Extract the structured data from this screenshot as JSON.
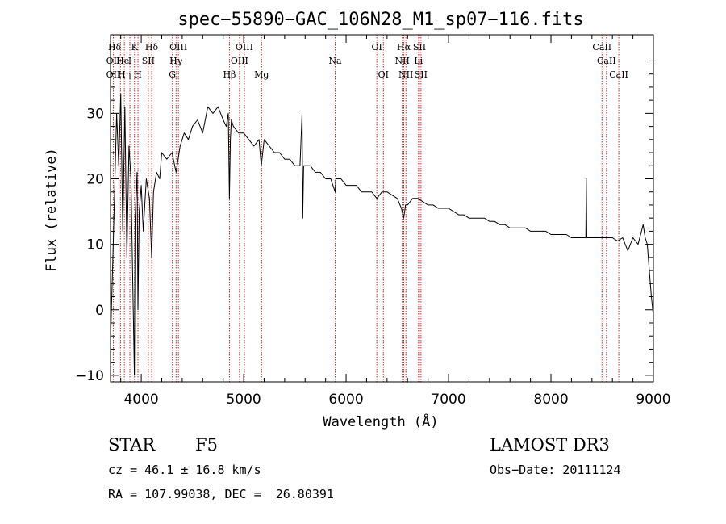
{
  "chart_data": {
    "type": "line",
    "title": "spec−55890−GAC_106N28_M1_sp07−116.fits",
    "xlabel": "Wavelength (Å)",
    "ylabel": "Flux (relative)",
    "xlim": [
      3700,
      9000
    ],
    "ylim": [
      -11,
      42
    ],
    "x_ticks": [
      4000,
      5000,
      6000,
      7000,
      8000,
      9000
    ],
    "y_ticks": [
      -10,
      0,
      10,
      20,
      30
    ],
    "grid": false,
    "series": [
      {
        "name": "flux",
        "x": [
          3700,
          3720,
          3740,
          3760,
          3780,
          3800,
          3820,
          3840,
          3860,
          3880,
          3900,
          3920,
          3933,
          3940,
          3960,
          3968,
          3980,
          4000,
          4020,
          4050,
          4080,
          4102,
          4120,
          4150,
          4180,
          4200,
          4250,
          4300,
          4340,
          4380,
          4420,
          4460,
          4500,
          4550,
          4600,
          4650,
          4700,
          4750,
          4800,
          4830,
          4850,
          4861,
          4870,
          4880,
          4900,
          4950,
          5000,
          5050,
          5100,
          5150,
          5172,
          5200,
          5250,
          5300,
          5350,
          5400,
          5450,
          5500,
          5550,
          5570,
          5577,
          5585,
          5600,
          5650,
          5700,
          5750,
          5800,
          5850,
          5893,
          5900,
          5950,
          6000,
          6050,
          6100,
          6150,
          6200,
          6250,
          6300,
          6350,
          6400,
          6450,
          6500,
          6540,
          6563,
          6580,
          6600,
          6650,
          6700,
          6750,
          6800,
          6850,
          6900,
          6950,
          7000,
          7050,
          7100,
          7150,
          7200,
          7250,
          7300,
          7350,
          7400,
          7450,
          7500,
          7550,
          7600,
          7650,
          7700,
          7750,
          7800,
          7850,
          7900,
          7950,
          8000,
          8050,
          8100,
          8150,
          8200,
          8250,
          8300,
          8340,
          8345,
          8350,
          8400,
          8450,
          8500,
          8550,
          8600,
          8650,
          8700,
          8750,
          8800,
          8850,
          8900,
          8920,
          8940,
          8960,
          8980,
          9000
        ],
        "y": [
          -5,
          6,
          18,
          30,
          22,
          33,
          12,
          31,
          8,
          25,
          20,
          2,
          -10,
          14,
          21,
          0,
          15,
          19,
          12,
          20,
          17,
          8,
          18,
          21,
          20,
          24,
          23,
          24,
          21,
          25,
          27,
          26,
          28,
          29,
          27,
          31,
          30,
          31,
          29,
          28,
          30,
          17,
          26,
          29,
          28,
          27,
          27,
          26,
          25,
          26,
          22,
          26,
          25,
          24,
          24,
          23,
          23,
          22,
          22,
          30,
          14,
          22,
          22,
          22,
          21,
          21,
          20,
          20,
          18,
          20,
          20,
          19,
          19,
          19,
          18,
          18,
          18,
          17,
          18,
          18,
          17.5,
          17,
          15.5,
          14,
          16,
          16,
          17,
          17,
          16.5,
          16,
          16,
          15.5,
          15.5,
          15.5,
          15,
          14.5,
          14.5,
          14,
          14,
          14,
          14,
          13.5,
          13.5,
          13,
          13,
          12.5,
          12.5,
          12.5,
          12.5,
          12,
          12,
          12,
          12,
          11.5,
          11.5,
          11.5,
          11.5,
          11,
          11,
          11,
          11,
          20,
          11,
          11,
          11,
          11,
          11,
          11,
          10.5,
          11,
          9,
          11,
          10,
          13,
          11,
          10,
          6,
          2,
          -1
        ]
      }
    ],
    "spectral_lines": [
      {
        "label": "Hδ",
        "x": 3740,
        "row": 1
      },
      {
        "label": "K",
        "x": 3934,
        "row": 1
      },
      {
        "label": "Hδ",
        "x": 4102,
        "row": 1
      },
      {
        "label": "OIII",
        "x": 4363,
        "row": 1
      },
      {
        "label": "OIII",
        "x": 5007,
        "row": 1
      },
      {
        "label": "OI",
        "x": 6300,
        "row": 1
      },
      {
        "label": "Hα",
        "x": 6563,
        "row": 1
      },
      {
        "label": "SII",
        "x": 6716,
        "row": 1
      },
      {
        "label": "CaII",
        "x": 8498,
        "row": 1
      },
      {
        "label": "OII",
        "x": 3727,
        "row": 2
      },
      {
        "label": "He",
        "x": 3820,
        "row": 2
      },
      {
        "label": "I",
        "x": 3889,
        "row": 2
      },
      {
        "label": "SII",
        "x": 4069,
        "row": 2
      },
      {
        "label": "Hγ",
        "x": 4340,
        "row": 2
      },
      {
        "label": "OIII",
        "x": 4959,
        "row": 2
      },
      {
        "label": "Na",
        "x": 5893,
        "row": 2
      },
      {
        "label": "NII",
        "x": 6548,
        "row": 2
      },
      {
        "label": "Li",
        "x": 6707,
        "row": 2
      },
      {
        "label": "CaII",
        "x": 8542,
        "row": 2
      },
      {
        "label": "OII",
        "x": 3727,
        "row": 3
      },
      {
        "label": "Hη",
        "x": 3835,
        "row": 3
      },
      {
        "label": "H",
        "x": 3968,
        "row": 3
      },
      {
        "label": "G",
        "x": 4304,
        "row": 3
      },
      {
        "label": "Hβ",
        "x": 4861,
        "row": 3
      },
      {
        "label": "Mg",
        "x": 5175,
        "row": 3
      },
      {
        "label": "OI",
        "x": 6364,
        "row": 3
      },
      {
        "label": "NII",
        "x": 6584,
        "row": 3
      },
      {
        "label": "SII",
        "x": 6731,
        "row": 3
      },
      {
        "label": "CaII",
        "x": 8662,
        "row": 3
      }
    ],
    "marker_lines_x": [
      3727,
      3797,
      3835,
      3889,
      3934,
      3968,
      4069,
      4102,
      4304,
      4340,
      4363,
      4861,
      4959,
      5007,
      5175,
      5893,
      6300,
      6364,
      6548,
      6563,
      6584,
      6707,
      6716,
      6731,
      8498,
      8542,
      8662
    ]
  },
  "info": {
    "object_class": "STAR",
    "subclass": "F5",
    "survey": "LAMOST DR3",
    "redshift_text": "cz = 46.1 ± 16.8 km/s",
    "obs_date_text": "Obs−Date: 20111124",
    "coords_text": "RA = 107.99038, DEC =  26.80391"
  },
  "colors": {
    "spectrum": "#000000",
    "marker_line": "#c03030",
    "axis": "#000000"
  }
}
